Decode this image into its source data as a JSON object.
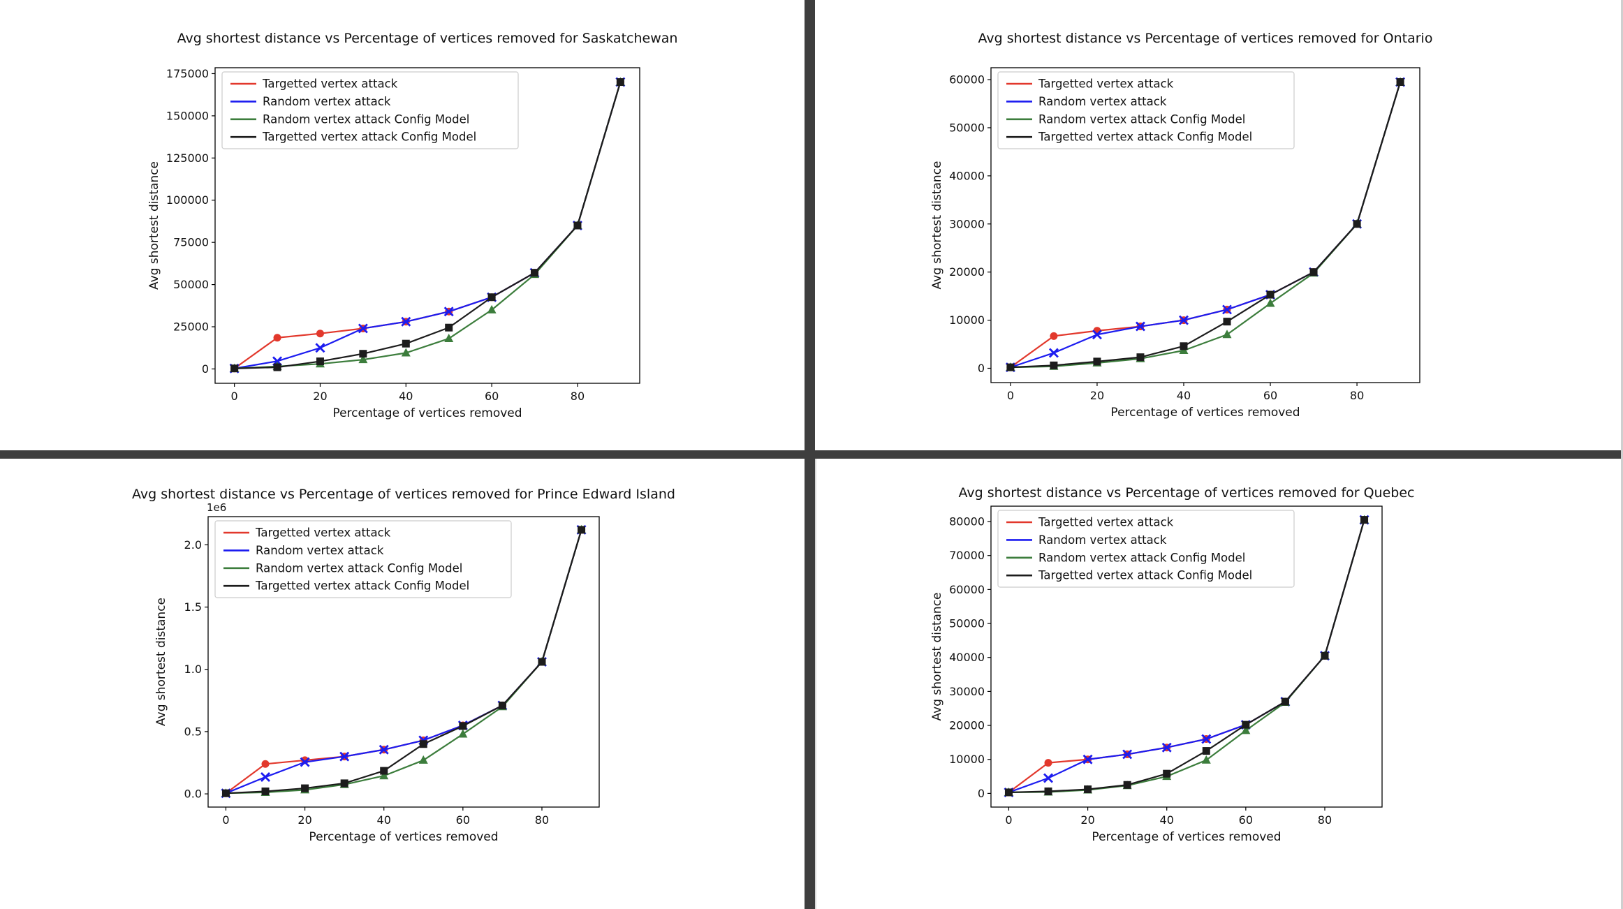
{
  "page": {
    "background_color": "#ffffff",
    "divider_color": "#3e3e3e",
    "right_border_color": "#cfcfcf"
  },
  "chart_data": [
    {
      "id": "saskatchewan",
      "type": "line",
      "title": "Avg shortest distance vs Percentage of vertices removed for Saskatchewan",
      "xlabel": "Percentage of vertices removed",
      "ylabel": "Avg shortest distance",
      "y_offset_label": "",
      "legend_position": "upper left",
      "grid": false,
      "x": [
        0,
        10,
        20,
        30,
        40,
        50,
        60,
        70,
        80,
        90
      ],
      "xlim": [
        -4.5,
        94.5
      ],
      "ylim": [
        -8500,
        178500
      ],
      "x_ticks": [
        0,
        20,
        40,
        60,
        80
      ],
      "y_ticks": {
        "values": [
          0,
          25000,
          50000,
          75000,
          100000,
          125000,
          150000,
          175000
        ],
        "labels": [
          "0",
          "25000",
          "50000",
          "75000",
          "100000",
          "125000",
          "150000",
          "175000"
        ]
      },
      "series": [
        {
          "name": "Targetted vertex attack",
          "color": "#e2382c",
          "marker": "circle",
          "values": [
            300,
            18500,
            21000,
            24000,
            28000,
            34000,
            42500,
            57000,
            85000,
            170000
          ]
        },
        {
          "name": "Random vertex attack",
          "color": "#1c1cf0",
          "marker": "x",
          "values": [
            300,
            4600,
            12500,
            24000,
            28000,
            34000,
            42500,
            57000,
            85000,
            170000
          ]
        },
        {
          "name": "Random vertex attack Config Model",
          "color": "#3c7d3c",
          "marker": "triangle",
          "values": [
            300,
            1500,
            3000,
            5500,
            9500,
            18000,
            35000,
            56000,
            85000,
            170000
          ]
        },
        {
          "name": "Targetted vertex attack Config Model",
          "color": "#1c1c1c",
          "marker": "square",
          "values": [
            300,
            1000,
            4500,
            9000,
            15000,
            24500,
            42500,
            57000,
            85000,
            170000
          ]
        }
      ]
    },
    {
      "id": "ontario",
      "type": "line",
      "title": "Avg shortest distance vs Percentage of vertices removed for Ontario",
      "xlabel": "Percentage of vertices removed",
      "ylabel": "Avg shortest distance",
      "y_offset_label": "",
      "legend_position": "upper left",
      "grid": false,
      "x": [
        0,
        10,
        20,
        30,
        40,
        50,
        60,
        70,
        80,
        90
      ],
      "xlim": [
        -4.5,
        94.5
      ],
      "ylim": [
        -2975,
        62475
      ],
      "x_ticks": [
        0,
        20,
        40,
        60,
        80
      ],
      "y_ticks": {
        "values": [
          0,
          10000,
          20000,
          30000,
          40000,
          50000,
          60000
        ],
        "labels": [
          "0",
          "10000",
          "20000",
          "30000",
          "40000",
          "50000",
          "60000"
        ]
      },
      "series": [
        {
          "name": "Targetted vertex attack",
          "color": "#e2382c",
          "marker": "circle",
          "values": [
            200,
            6700,
            7800,
            8700,
            10000,
            12200,
            15300,
            20000,
            30000,
            59500
          ]
        },
        {
          "name": "Random vertex attack",
          "color": "#1c1cf0",
          "marker": "x",
          "values": [
            200,
            3200,
            7000,
            8700,
            10000,
            12200,
            15300,
            20000,
            30000,
            59500
          ]
        },
        {
          "name": "Random vertex attack Config Model",
          "color": "#3c7d3c",
          "marker": "triangle",
          "values": [
            200,
            400,
            1100,
            2000,
            3700,
            7000,
            13500,
            19800,
            30000,
            59500
          ]
        },
        {
          "name": "Targetted vertex attack Config Model",
          "color": "#1c1c1c",
          "marker": "square",
          "values": [
            200,
            600,
            1400,
            2300,
            4600,
            9700,
            15300,
            20000,
            30000,
            59500
          ]
        }
      ]
    },
    {
      "id": "prince_edward_island",
      "type": "line",
      "title": "Avg shortest distance vs Percentage of vertices removed for Prince Edward Island",
      "xlabel": "Percentage of vertices removed",
      "ylabel": "Avg shortest distance",
      "y_offset_label": "1e6",
      "legend_position": "upper left",
      "grid": false,
      "x": [
        0,
        10,
        20,
        30,
        40,
        50,
        60,
        70,
        80,
        90
      ],
      "xlim": [
        -4.5,
        94.5
      ],
      "ylim": [
        -0.106,
        2.226
      ],
      "x_ticks": [
        0,
        20,
        40,
        60,
        80
      ],
      "y_ticks": {
        "values": [
          0.0,
          0.5,
          1.0,
          1.5,
          2.0
        ],
        "labels": [
          "0.0",
          "0.5",
          "1.0",
          "1.5",
          "2.0"
        ]
      },
      "series": [
        {
          "name": "Targetted vertex attack",
          "color": "#e2382c",
          "marker": "circle",
          "values": [
            0.005,
            0.24,
            0.27,
            0.3,
            0.355,
            0.43,
            0.55,
            0.71,
            1.06,
            2.12
          ]
        },
        {
          "name": "Random vertex attack",
          "color": "#1c1cf0",
          "marker": "x",
          "values": [
            0.005,
            0.135,
            0.255,
            0.3,
            0.355,
            0.43,
            0.55,
            0.71,
            1.06,
            2.12
          ]
        },
        {
          "name": "Random vertex attack Config Model",
          "color": "#3c7d3c",
          "marker": "triangle",
          "values": [
            0.005,
            0.012,
            0.032,
            0.075,
            0.145,
            0.27,
            0.48,
            0.7,
            1.06,
            2.12
          ]
        },
        {
          "name": "Targetted vertex attack Config Model",
          "color": "#1c1c1c",
          "marker": "square",
          "values": [
            0.005,
            0.02,
            0.045,
            0.085,
            0.185,
            0.4,
            0.545,
            0.71,
            1.06,
            2.12
          ]
        }
      ]
    },
    {
      "id": "quebec",
      "type": "line",
      "title": "Avg shortest distance vs Percentage of vertices removed for Quebec",
      "xlabel": "Percentage of vertices removed",
      "ylabel": "Avg shortest distance",
      "y_offset_label": "",
      "legend_position": "upper left",
      "grid": false,
      "x": [
        0,
        10,
        20,
        30,
        40,
        50,
        60,
        70,
        80,
        90
      ],
      "xlim": [
        -4.5,
        94.5
      ],
      "ylim": [
        -4025,
        84525
      ],
      "x_ticks": [
        0,
        20,
        40,
        60,
        80
      ],
      "y_ticks": {
        "values": [
          0,
          10000,
          20000,
          30000,
          40000,
          50000,
          60000,
          70000,
          80000
        ],
        "labels": [
          "0",
          "10000",
          "20000",
          "30000",
          "40000",
          "50000",
          "60000",
          "70000",
          "80000"
        ]
      },
      "series": [
        {
          "name": "Targetted vertex attack",
          "color": "#e2382c",
          "marker": "circle",
          "values": [
            300,
            9000,
            10000,
            11500,
            13500,
            16000,
            20200,
            27000,
            40500,
            80500
          ]
        },
        {
          "name": "Random vertex attack",
          "color": "#1c1cf0",
          "marker": "x",
          "values": [
            300,
            4500,
            10000,
            11500,
            13500,
            16000,
            20200,
            27000,
            40500,
            80500
          ]
        },
        {
          "name": "Random vertex attack Config Model",
          "color": "#3c7d3c",
          "marker": "triangle",
          "values": [
            300,
            400,
            1000,
            2300,
            5000,
            9800,
            18500,
            26800,
            40500,
            80500
          ]
        },
        {
          "name": "Targetted vertex attack Config Model",
          "color": "#1c1c1c",
          "marker": "square",
          "values": [
            300,
            600,
            1200,
            2500,
            5800,
            12500,
            20200,
            27000,
            40500,
            80500
          ]
        }
      ]
    }
  ]
}
